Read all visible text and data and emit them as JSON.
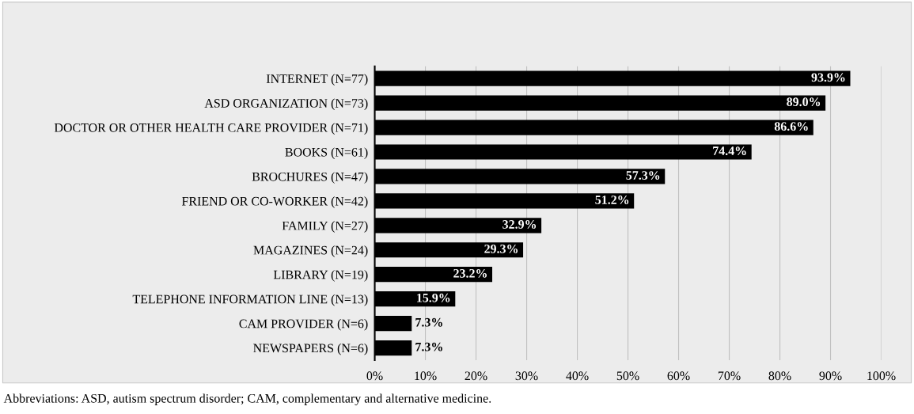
{
  "chart_data": {
    "type": "bar",
    "orientation": "horizontal",
    "categories": [
      "INTERNET (N=77)",
      "ASD ORGANIZATION (N=73)",
      "DOCTOR OR OTHER HEALTH CARE PROVIDER (N=71)",
      "BOOKS (N=61)",
      "BROCHURES (N=47)",
      "FRIEND OR CO-WORKER (N=42)",
      "FAMILY (N=27)",
      "MAGAZINES (N=24)",
      "LIBRARY (N=19)",
      "TELEPHONE INFORMATION LINE (N=13)",
      "CAM PROVIDER (N=6)",
      "NEWSPAPERS (N=6)"
    ],
    "values": [
      93.9,
      89.0,
      86.6,
      74.4,
      57.3,
      51.2,
      32.9,
      29.3,
      23.2,
      15.9,
      7.3,
      7.3
    ],
    "value_labels": [
      "93.9%",
      "89.0%",
      "86.6%",
      "74.4%",
      "57.3%",
      "51.2%",
      "32.9%",
      "29.3%",
      "23.2%",
      "15.9%",
      "7.3%",
      "7.3%"
    ],
    "color": "#000000",
    "xlim": [
      0,
      100
    ],
    "xticks": [
      {
        "value": 0,
        "label": "0%"
      },
      {
        "value": 10,
        "label": "10%"
      },
      {
        "value": 20,
        "label": "20%"
      },
      {
        "value": 30,
        "label": "30%"
      },
      {
        "value": 40,
        "label": "40%"
      },
      {
        "value": 50,
        "label": "50%"
      },
      {
        "value": 60,
        "label": "60%"
      },
      {
        "value": 70,
        "label": "70%"
      },
      {
        "value": 80,
        "label": "80%"
      },
      {
        "value": 90,
        "label": "90%"
      },
      {
        "value": 100,
        "label": "100%"
      }
    ],
    "grid": "x",
    "annotations": [
      "Abbreviations: ASD, autism spectrum disorder; CAM, complementary and alternative medicine."
    ]
  }
}
